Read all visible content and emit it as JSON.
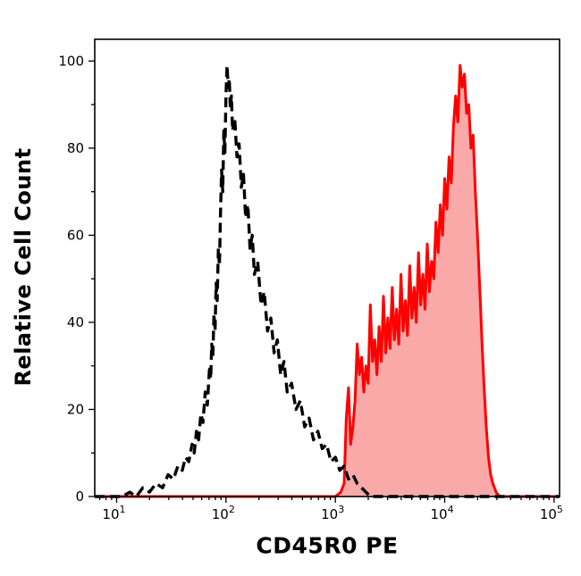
{
  "chart_data": {
    "type": "area",
    "subtype": "flow-cytometry-histogram",
    "title": "",
    "xlabel": "CD45R0 PE",
    "ylabel": "Relative Cell Count",
    "x_scale": "log10",
    "x_log_range": [
      0.8,
      5.05
    ],
    "ylim": [
      0,
      105
    ],
    "x_tick_base": "10",
    "x_major_tick_exponents": [
      1,
      2,
      3,
      4,
      5
    ],
    "y_major_ticks": [
      0,
      20,
      40,
      60,
      80,
      100
    ],
    "y_minor_step": 10,
    "grid": false,
    "legend": "none",
    "colors": {
      "stained_stroke": "#ff0000",
      "stained_fill": "#f9a0a0",
      "control_stroke": "#000000",
      "axis": "#000000",
      "background": "#ffffff"
    },
    "series": [
      {
        "name": "cd45r0-pe-stained",
        "style": "solid",
        "color": "#ff0000",
        "fill": true,
        "fill_color": "#f9a0a0",
        "fill_opacity": 0.9,
        "stroke_width": 3,
        "points": [
          [
            0.8,
            0
          ],
          [
            2.9,
            0
          ],
          [
            3.0,
            0
          ],
          [
            3.05,
            1
          ],
          [
            3.08,
            3
          ],
          [
            3.1,
            18
          ],
          [
            3.12,
            25
          ],
          [
            3.14,
            12
          ],
          [
            3.16,
            16
          ],
          [
            3.18,
            22
          ],
          [
            3.2,
            35
          ],
          [
            3.22,
            28
          ],
          [
            3.24,
            32
          ],
          [
            3.26,
            24
          ],
          [
            3.28,
            30
          ],
          [
            3.3,
            26
          ],
          [
            3.32,
            44
          ],
          [
            3.34,
            31
          ],
          [
            3.36,
            36
          ],
          [
            3.38,
            28
          ],
          [
            3.4,
            39
          ],
          [
            3.42,
            31
          ],
          [
            3.44,
            46
          ],
          [
            3.46,
            33
          ],
          [
            3.48,
            41
          ],
          [
            3.5,
            34
          ],
          [
            3.52,
            48
          ],
          [
            3.54,
            36
          ],
          [
            3.56,
            43
          ],
          [
            3.58,
            35
          ],
          [
            3.6,
            51
          ],
          [
            3.62,
            38
          ],
          [
            3.64,
            45
          ],
          [
            3.66,
            37
          ],
          [
            3.68,
            53
          ],
          [
            3.7,
            41
          ],
          [
            3.72,
            48
          ],
          [
            3.74,
            40
          ],
          [
            3.76,
            56
          ],
          [
            3.78,
            44
          ],
          [
            3.8,
            51
          ],
          [
            3.82,
            43
          ],
          [
            3.84,
            58
          ],
          [
            3.86,
            47
          ],
          [
            3.88,
            54
          ],
          [
            3.9,
            50
          ],
          [
            3.92,
            63
          ],
          [
            3.94,
            56
          ],
          [
            3.96,
            67
          ],
          [
            3.98,
            60
          ],
          [
            4.0,
            73
          ],
          [
            4.02,
            66
          ],
          [
            4.04,
            78
          ],
          [
            4.06,
            72
          ],
          [
            4.08,
            85
          ],
          [
            4.1,
            92
          ],
          [
            4.12,
            86
          ],
          [
            4.14,
            99
          ],
          [
            4.16,
            94
          ],
          [
            4.18,
            97
          ],
          [
            4.2,
            88
          ],
          [
            4.22,
            90
          ],
          [
            4.24,
            80
          ],
          [
            4.26,
            83
          ],
          [
            4.28,
            70
          ],
          [
            4.3,
            60
          ],
          [
            4.32,
            48
          ],
          [
            4.34,
            36
          ],
          [
            4.36,
            25
          ],
          [
            4.38,
            16
          ],
          [
            4.4,
            9
          ],
          [
            4.42,
            5
          ],
          [
            4.44,
            3
          ],
          [
            4.47,
            1
          ],
          [
            4.5,
            0
          ],
          [
            5.05,
            0
          ]
        ]
      },
      {
        "name": "negative-control",
        "style": "dashed",
        "color": "#000000",
        "fill": false,
        "stroke_width": 3.4,
        "dash": "11 6",
        "points": [
          [
            0.8,
            0
          ],
          [
            1.05,
            0
          ],
          [
            1.12,
            1
          ],
          [
            1.18,
            0
          ],
          [
            1.24,
            2
          ],
          [
            1.3,
            1
          ],
          [
            1.36,
            3
          ],
          [
            1.42,
            2
          ],
          [
            1.47,
            5
          ],
          [
            1.52,
            4
          ],
          [
            1.56,
            7
          ],
          [
            1.6,
            6
          ],
          [
            1.63,
            9
          ],
          [
            1.66,
            8
          ],
          [
            1.69,
            12
          ],
          [
            1.71,
            10
          ],
          [
            1.73,
            15
          ],
          [
            1.75,
            13
          ],
          [
            1.77,
            19
          ],
          [
            1.79,
            17
          ],
          [
            1.81,
            24
          ],
          [
            1.83,
            21
          ],
          [
            1.85,
            30
          ],
          [
            1.86,
            27
          ],
          [
            1.87,
            35
          ],
          [
            1.88,
            32
          ],
          [
            1.89,
            42
          ],
          [
            1.9,
            38
          ],
          [
            1.91,
            49
          ],
          [
            1.92,
            45
          ],
          [
            1.93,
            57
          ],
          [
            1.94,
            53
          ],
          [
            1.95,
            65
          ],
          [
            1.96,
            75
          ],
          [
            1.97,
            70
          ],
          [
            1.98,
            84
          ],
          [
            1.99,
            79
          ],
          [
            2.0,
            92
          ],
          [
            2.01,
            99
          ],
          [
            2.02,
            94
          ],
          [
            2.03,
            96
          ],
          [
            2.04,
            89
          ],
          [
            2.05,
            92
          ],
          [
            2.06,
            84
          ],
          [
            2.08,
            87
          ],
          [
            2.1,
            78
          ],
          [
            2.12,
            81
          ],
          [
            2.14,
            71
          ],
          [
            2.16,
            74
          ],
          [
            2.18,
            64
          ],
          [
            2.2,
            67
          ],
          [
            2.22,
            57
          ],
          [
            2.24,
            60
          ],
          [
            2.26,
            51
          ],
          [
            2.29,
            54
          ],
          [
            2.32,
            44
          ],
          [
            2.35,
            47
          ],
          [
            2.38,
            38
          ],
          [
            2.41,
            41
          ],
          [
            2.44,
            33
          ],
          [
            2.47,
            36
          ],
          [
            2.5,
            28
          ],
          [
            2.53,
            31
          ],
          [
            2.56,
            24
          ],
          [
            2.6,
            26
          ],
          [
            2.64,
            20
          ],
          [
            2.68,
            22
          ],
          [
            2.72,
            16
          ],
          [
            2.76,
            18
          ],
          [
            2.8,
            13
          ],
          [
            2.84,
            15
          ],
          [
            2.88,
            11
          ],
          [
            2.92,
            12
          ],
          [
            2.96,
            8
          ],
          [
            3.0,
            9
          ],
          [
            3.04,
            6
          ],
          [
            3.08,
            7
          ],
          [
            3.12,
            4
          ],
          [
            3.16,
            5
          ],
          [
            3.2,
            3
          ],
          [
            3.24,
            2
          ],
          [
            3.28,
            1
          ],
          [
            3.32,
            0
          ],
          [
            3.6,
            0
          ],
          [
            4.2,
            0
          ],
          [
            5.05,
            0
          ]
        ]
      }
    ]
  }
}
